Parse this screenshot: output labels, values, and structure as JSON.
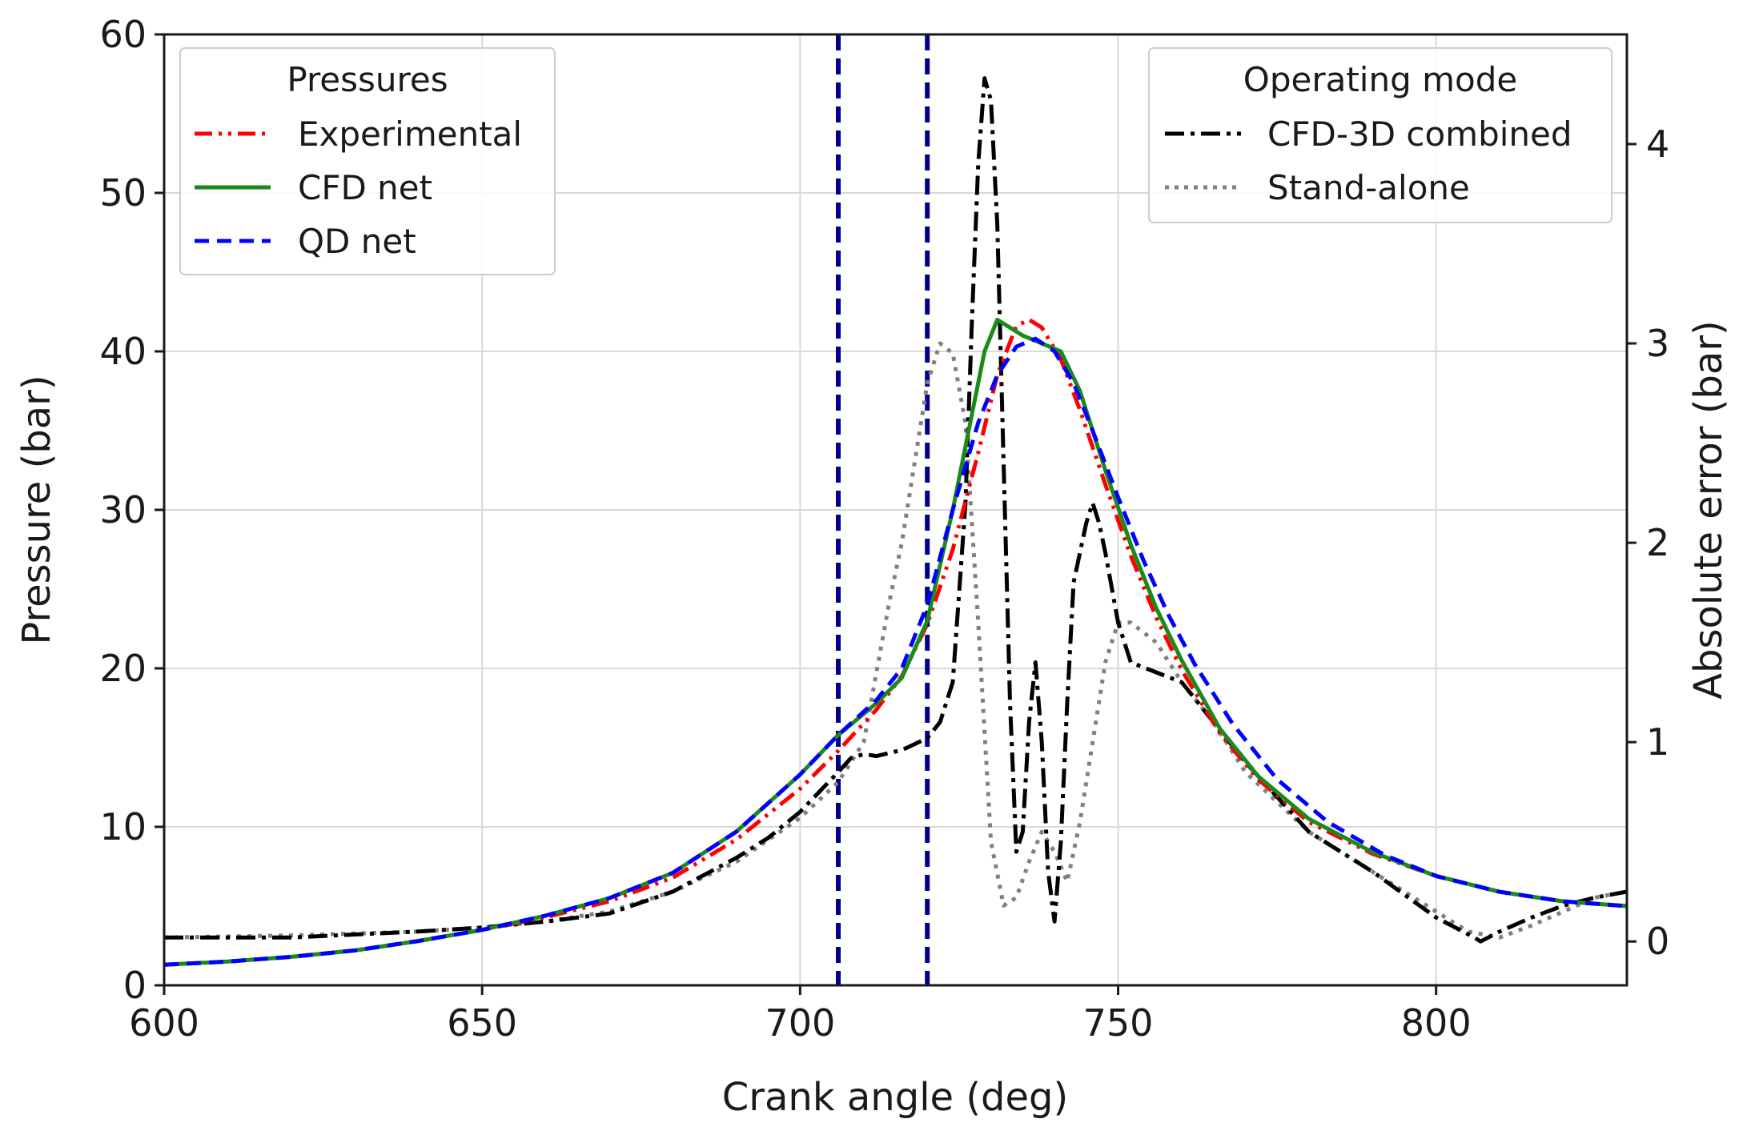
{
  "chart_data": {
    "type": "line",
    "title": "",
    "xlabel": "Crank angle (deg)",
    "ylabel": "Pressure (bar)",
    "y2label": "Absolute error (bar)",
    "xlim": [
      600,
      830
    ],
    "ylim": [
      0,
      60
    ],
    "y2lim": [
      -0.22,
      4.55
    ],
    "xticks": [
      "600",
      "650",
      "700",
      "750",
      "800"
    ],
    "yticks": [
      "0",
      "10",
      "20",
      "30",
      "40",
      "50",
      "60"
    ],
    "y2ticks": [
      "0",
      "1",
      "2",
      "3",
      "4"
    ],
    "grid": true,
    "vertical_lines": [
      706,
      720
    ],
    "vline_color": "#00008b",
    "legend_pressures": {
      "title": "Pressures",
      "position": "top-left",
      "entries": [
        {
          "label": "Experimental",
          "color": "#ff0000",
          "dash": "dashdotdot"
        },
        {
          "label": "CFD net",
          "color": "#1a8a1a",
          "dash": "solid"
        },
        {
          "label": "QD net",
          "color": "#0000ff",
          "dash": "dashed"
        }
      ]
    },
    "legend_mode": {
      "title": "Operating mode",
      "position": "top-right",
      "entries": [
        {
          "label": "CFD-3D combined",
          "color": "#000000",
          "dash": "dashdot"
        },
        {
          "label": "Stand-alone",
          "color": "#808080",
          "dash": "dotted"
        }
      ]
    },
    "series": [
      {
        "name": "Experimental",
        "axis": "left",
        "color": "#ff0000",
        "dash": "dashdotdot",
        "x": [
          600,
          610,
          620,
          630,
          640,
          650,
          660,
          670,
          680,
          690,
          700,
          706,
          712,
          716,
          720,
          724,
          728,
          731,
          734,
          736,
          738,
          741,
          744,
          748,
          752,
          756,
          760,
          766,
          772,
          780,
          790,
          800,
          810,
          820,
          830
        ],
        "y": [
          1.3,
          1.5,
          1.8,
          2.2,
          2.8,
          3.5,
          4.3,
          5.3,
          6.8,
          9.2,
          12.4,
          14.8,
          17.4,
          19.5,
          22.8,
          27.5,
          33.6,
          38.5,
          41.6,
          42.0,
          41.5,
          39.5,
          36.3,
          31.6,
          27.1,
          23.2,
          19.9,
          15.9,
          13.0,
          10.3,
          8.3,
          6.9,
          5.9,
          5.3,
          5.0
        ]
      },
      {
        "name": "CFD net",
        "axis": "left",
        "color": "#1a8a1a",
        "dash": "solid",
        "x": [
          600,
          610,
          620,
          630,
          640,
          650,
          660,
          670,
          680,
          690,
          700,
          706,
          712,
          716,
          720,
          724,
          727,
          729,
          731,
          733,
          735,
          738,
          741,
          744,
          748,
          752,
          756,
          760,
          766,
          772,
          780,
          790,
          800,
          810,
          820,
          830
        ],
        "y": [
          1.3,
          1.5,
          1.8,
          2.2,
          2.8,
          3.5,
          4.4,
          5.5,
          7.1,
          9.7,
          13.3,
          15.8,
          17.8,
          19.4,
          23.0,
          30.0,
          36.0,
          40.0,
          42.0,
          41.5,
          41.0,
          40.5,
          40.0,
          37.5,
          32.5,
          27.8,
          23.8,
          20.5,
          16.2,
          13.2,
          10.5,
          8.4,
          6.9,
          5.9,
          5.3,
          5.0
        ]
      },
      {
        "name": "QD net",
        "axis": "left",
        "color": "#0000ff",
        "dash": "dashed",
        "x": [
          600,
          610,
          620,
          630,
          640,
          650,
          660,
          670,
          680,
          690,
          700,
          706,
          712,
          716,
          720,
          724,
          728,
          731,
          734,
          737,
          740,
          743,
          746,
          750,
          754,
          758,
          762,
          768,
          775,
          783,
          792,
          800,
          810,
          820,
          830
        ],
        "y": [
          1.3,
          1.5,
          1.8,
          2.2,
          2.8,
          3.5,
          4.4,
          5.5,
          7.1,
          9.7,
          13.3,
          15.8,
          18.0,
          20.0,
          24.0,
          30.0,
          35.5,
          38.5,
          40.3,
          40.8,
          40.0,
          38.0,
          35.0,
          30.8,
          26.8,
          23.3,
          20.3,
          16.5,
          13.0,
          10.3,
          8.2,
          6.9,
          5.9,
          5.3,
          5.0
        ]
      },
      {
        "name": "CFD-3D combined",
        "axis": "right",
        "color": "#000000",
        "dash": "dashdot",
        "x": [
          600,
          620,
          640,
          650,
          660,
          670,
          680,
          690,
          695,
          700,
          703,
          706,
          708,
          710,
          712,
          716,
          720,
          722,
          724,
          726,
          727,
          728,
          729,
          730,
          731,
          732,
          733,
          734,
          735,
          736,
          737,
          738,
          739,
          740,
          741,
          742,
          743,
          745,
          746,
          747,
          748,
          750,
          752,
          756,
          760,
          765,
          770,
          780,
          790,
          800,
          806,
          807,
          810,
          815,
          820,
          825,
          830
        ],
        "y": [
          0.02,
          0.02,
          0.05,
          0.07,
          0.1,
          0.14,
          0.25,
          0.42,
          0.52,
          0.65,
          0.75,
          0.85,
          0.92,
          0.94,
          0.93,
          0.96,
          1.02,
          1.1,
          1.3,
          2.2,
          3.1,
          3.9,
          4.33,
          4.22,
          3.6,
          2.4,
          1.2,
          0.45,
          0.55,
          1.1,
          1.4,
          1.0,
          0.35,
          0.1,
          0.5,
          1.2,
          1.8,
          2.1,
          2.2,
          2.1,
          1.95,
          1.6,
          1.4,
          1.35,
          1.3,
          1.1,
          0.9,
          0.55,
          0.35,
          0.12,
          0.02,
          0.0,
          0.05,
          0.12,
          0.18,
          0.22,
          0.25
        ]
      },
      {
        "name": "Stand-alone",
        "axis": "right",
        "color": "#808080",
        "dash": "dotted",
        "x": [
          600,
          620,
          640,
          650,
          660,
          670,
          680,
          690,
          700,
          706,
          710,
          712,
          714,
          716,
          718,
          720,
          722,
          724,
          726,
          728,
          730,
          732,
          734,
          736,
          738,
          740,
          742,
          744,
          746,
          748,
          750,
          752,
          756,
          760,
          765,
          770,
          780,
          790,
          800,
          805,
          810,
          815,
          820,
          825,
          830
        ],
        "y": [
          0.02,
          0.03,
          0.05,
          0.07,
          0.1,
          0.15,
          0.25,
          0.4,
          0.62,
          0.8,
          1.0,
          1.35,
          1.7,
          2.0,
          2.4,
          2.8,
          3.0,
          2.95,
          2.6,
          1.6,
          0.5,
          0.18,
          0.22,
          0.4,
          0.55,
          0.45,
          0.3,
          0.6,
          1.0,
          1.4,
          1.6,
          1.6,
          1.5,
          1.3,
          1.1,
          0.85,
          0.55,
          0.35,
          0.15,
          0.05,
          0.02,
          0.08,
          0.15,
          0.22,
          0.25
        ]
      }
    ]
  }
}
